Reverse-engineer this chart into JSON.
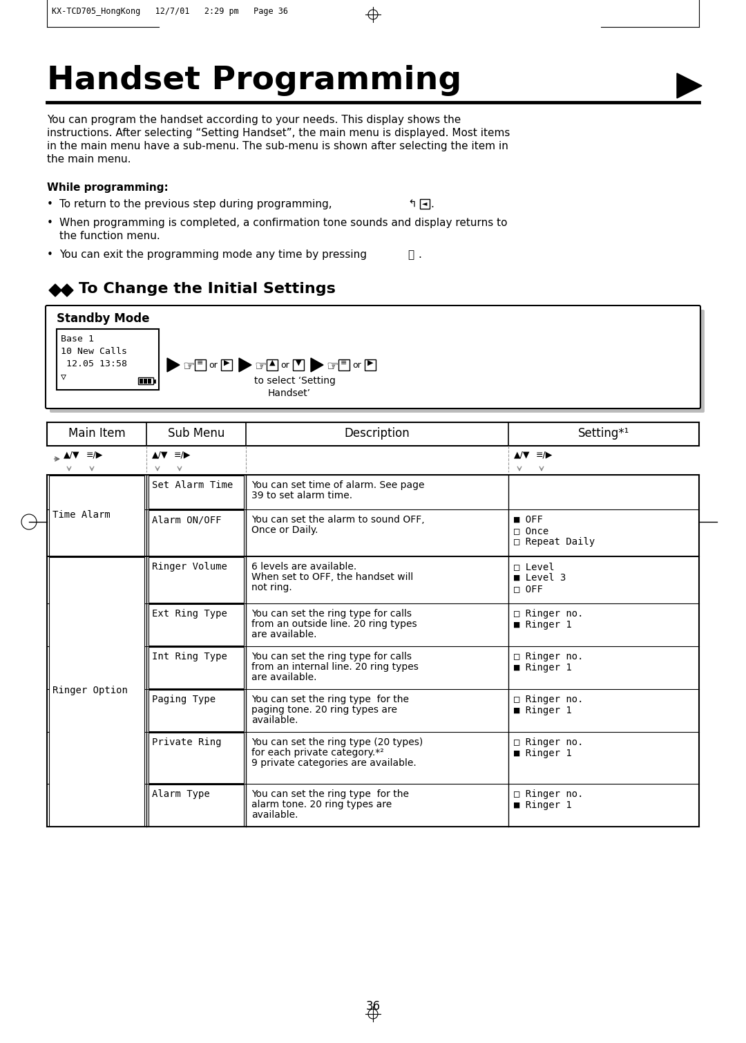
{
  "bg_color": "#ffffff",
  "header_text": "KX-TCD705_HongKong   12/7/01   2:29 pm   Page 36",
  "title": "Handset Programming",
  "intro_lines": [
    "You can program the handset according to your needs. This display shows the",
    "instructions. After selecting “Setting Handset”, the main menu is displayed. Most items",
    "in the main menu have a sub-menu. The sub-menu is shown after selecting the item in",
    "the main menu."
  ],
  "while_bold": "While programming:",
  "bullets": [
    "To return to the previous step during programming,",
    "When programming is completed, a confirmation tone sounds and display returns to\nthe function menu.",
    "You can exit the programming mode any time by pressing"
  ],
  "section_title": "To Change the Initial Settings",
  "standby_label": "Standby Mode",
  "lcd_lines": [
    "Base 1",
    "10 New Calls",
    " 12.05 13:58",
    "▽"
  ],
  "to_select_line1": "to select ‘Setting",
  "to_select_line2": "Handset’",
  "table_headers": [
    "Main Item",
    "Sub Menu",
    "Description",
    "Setting*¹"
  ],
  "main_items": [
    {
      "label": "Time Alarm",
      "rows": 2
    },
    {
      "label": "Ringer Option",
      "rows": 6
    }
  ],
  "sub_items": [
    "Set Alarm Time",
    "Alarm ON/OFF",
    "Ringer Volume",
    "Ext Ring Type",
    "Int Ring Type",
    "Paging Type",
    "Private Ring",
    "Alarm Type"
  ],
  "descriptions": [
    "You can set time of alarm. See page\n39 to set alarm time.",
    "You can set the alarm to sound OFF,\nOnce or Daily.",
    "6 levels are available.\nWhen set to OFF, the handset will\nnot ring.",
    "You can set the ring type for calls\nfrom an outside line. 20 ring types\nare available.",
    "You can set the ring type for calls\nfrom an internal line. 20 ring types\nare available.",
    "You can set the ring type  for the\npaging tone. 20 ring types are\navailable.",
    "You can set the ring type (20 types)\nfor each private category.*²\n9 private categories are available.",
    "You can set the ring type  for the\nalarm tone. 20 ring types are\navailable."
  ],
  "settings": [
    "",
    "■ OFF\n□ Once\n□ Repeat Daily",
    "□ Level\n■ Level 3\n□ OFF",
    "□ Ringer no.\n■ Ringer 1",
    "□ Ringer no.\n■ Ringer 1",
    "□ Ringer no.\n■ Ringer 1",
    "□ Ringer no.\n■ Ringer 1",
    "□ Ringer no.\n■ Ringer 1"
  ],
  "page_number": "36",
  "mono_font": "DejaVu Sans Mono",
  "sans_font": "DejaVu Sans"
}
